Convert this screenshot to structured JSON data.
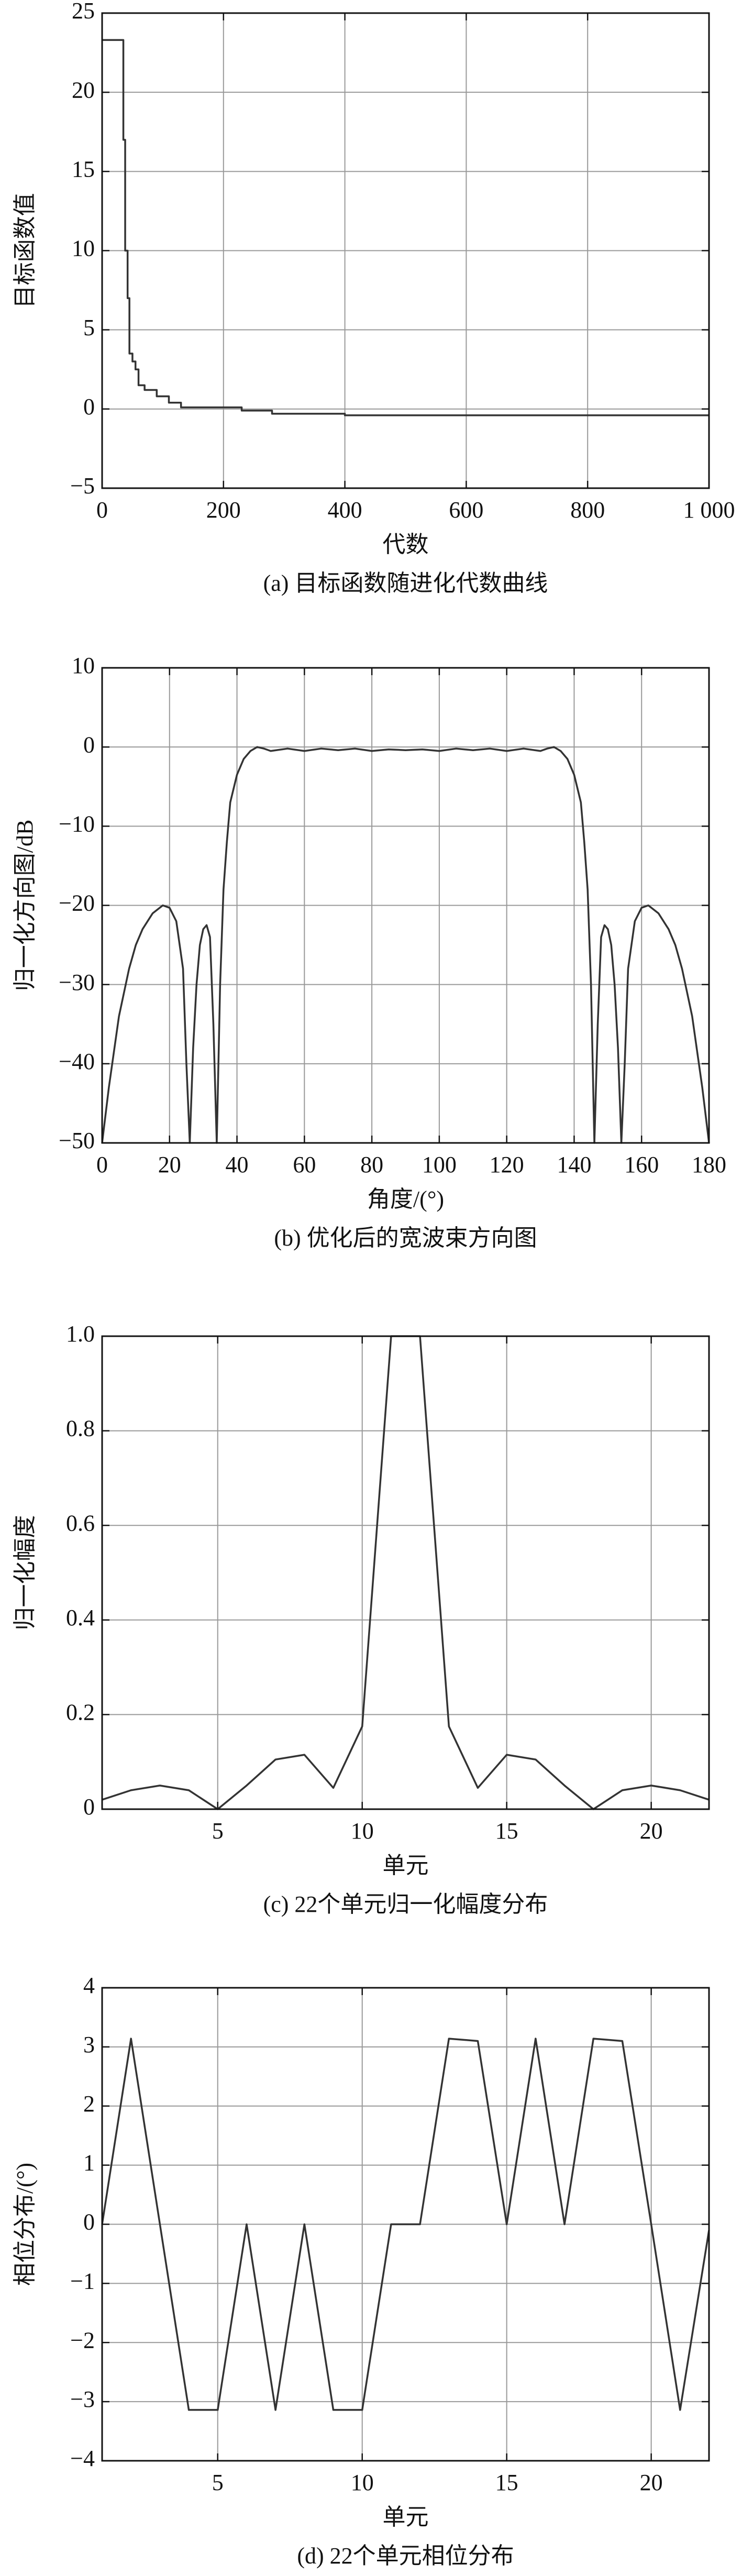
{
  "chart_data": [
    {
      "type": "line",
      "caption": "(a) 目标函数随进化代数曲线",
      "x_label": "代数",
      "y_label": "目标函数值",
      "color": "#333333",
      "grid": true,
      "xlim": [
        0,
        1000
      ],
      "xticks": [
        0,
        200,
        400,
        600,
        800,
        {
          "value": 1000,
          "label": "1 000"
        }
      ],
      "ylim": [
        -5,
        25
      ],
      "yticks": [
        {
          "value": -5,
          "label": "−5"
        },
        0,
        5,
        10,
        15,
        20,
        25
      ],
      "x": [
        0,
        35,
        35,
        38,
        38,
        42,
        42,
        45,
        45,
        50,
        50,
        55,
        55,
        60,
        60,
        70,
        70,
        90,
        90,
        110,
        110,
        130,
        130,
        230,
        230,
        280,
        280,
        400,
        400,
        1000
      ],
      "values": [
        23.3,
        23.3,
        17,
        17,
        10,
        10,
        7,
        7,
        3.5,
        3.5,
        3,
        3,
        2.5,
        2.5,
        1.5,
        1.5,
        1.2,
        1.2,
        0.8,
        0.8,
        0.4,
        0.4,
        0.1,
        0.1,
        -0.1,
        -0.1,
        -0.3,
        -0.3,
        -0.4,
        -0.4
      ]
    },
    {
      "type": "line",
      "caption": "(b) 优化后的宽波束方向图",
      "x_label": "角度/(°)",
      "y_label": "归一化方向图/dB",
      "color": "#333333",
      "grid": true,
      "xlim": [
        0,
        180
      ],
      "xticks": [
        0,
        20,
        40,
        60,
        80,
        100,
        120,
        140,
        160,
        180
      ],
      "ylim": [
        -50,
        10
      ],
      "yticks": [
        {
          "value": -50,
          "label": "−50"
        },
        {
          "value": -40,
          "label": "−40"
        },
        {
          "value": -30,
          "label": "−30"
        },
        {
          "value": -20,
          "label": "−20"
        },
        {
          "value": -10,
          "label": "−10"
        },
        0,
        10
      ],
      "x": [
        0,
        2,
        5,
        8,
        10,
        12,
        15,
        18,
        20,
        22,
        24,
        25,
        26,
        27,
        28,
        29,
        30,
        31,
        32,
        33,
        34,
        35,
        36,
        37,
        38,
        40,
        42,
        44,
        46,
        48,
        50,
        55,
        60,
        65,
        70,
        75,
        80,
        85,
        90,
        95,
        100,
        105,
        110,
        115,
        120,
        125,
        130,
        132,
        134,
        136,
        138,
        140,
        142,
        143,
        144,
        145,
        146,
        147,
        148,
        149,
        150,
        151,
        152,
        153,
        154,
        155,
        156,
        158,
        160,
        162,
        165,
        168,
        170,
        172,
        175,
        178,
        180
      ],
      "values": [
        -50,
        -43,
        -34,
        -28,
        -25,
        -23,
        -21,
        -20,
        -20.3,
        -22,
        -28,
        -40,
        -50,
        -38,
        -30,
        -25,
        -23,
        -22.5,
        -24,
        -35,
        -50,
        -30,
        -18,
        -12,
        -7,
        -3.5,
        -1.5,
        -0.5,
        0,
        -0.2,
        -0.5,
        -0.2,
        -0.5,
        -0.2,
        -0.4,
        -0.2,
        -0.5,
        -0.3,
        -0.4,
        -0.3,
        -0.5,
        -0.2,
        -0.4,
        -0.2,
        -0.5,
        -0.2,
        -0.5,
        -0.2,
        0,
        -0.5,
        -1.5,
        -3.5,
        -7,
        -12,
        -18,
        -30,
        -50,
        -35,
        -24,
        -22.5,
        -23,
        -25,
        -30,
        -38,
        -50,
        -40,
        -28,
        -22,
        -20.3,
        -20,
        -21,
        -23,
        -25,
        -28,
        -34,
        -43,
        -50
      ]
    },
    {
      "type": "line",
      "caption": "(c) 22个单元归一化幅度分布",
      "x_label": "单元",
      "y_label": "归一化幅度",
      "color": "#333333",
      "grid": true,
      "xlim": [
        1,
        22
      ],
      "xticks": [
        5,
        10,
        15,
        20
      ],
      "ylim": [
        0,
        1
      ],
      "yticks": [
        0,
        0.2,
        0.4,
        0.6,
        0.8,
        {
          "value": 1,
          "label": "1.0"
        }
      ],
      "x": [
        1,
        2,
        3,
        4,
        5,
        6,
        7,
        8,
        9,
        10,
        11,
        12,
        13,
        14,
        15,
        16,
        17,
        18,
        19,
        20,
        21,
        22
      ],
      "values": [
        0.02,
        0.04,
        0.05,
        0.04,
        0.0,
        0.05,
        0.105,
        0.115,
        0.045,
        0.175,
        1.0,
        1.0,
        0.175,
        0.045,
        0.115,
        0.105,
        0.05,
        0.0,
        0.04,
        0.05,
        0.04,
        0.02
      ]
    },
    {
      "type": "line",
      "caption": "(d) 22个单元相位分布",
      "x_label": "单元",
      "y_label": "相位分布/(°)",
      "color": "#333333",
      "grid": true,
      "xlim": [
        1,
        22
      ],
      "xticks": [
        5,
        10,
        15,
        20
      ],
      "ylim": [
        -4,
        4
      ],
      "yticks": [
        {
          "value": -4,
          "label": "−4"
        },
        {
          "value": -3,
          "label": "−3"
        },
        {
          "value": -2,
          "label": "−2"
        },
        {
          "value": -1,
          "label": "−1"
        },
        0,
        1,
        2,
        3,
        4
      ],
      "x": [
        1,
        2,
        3,
        4,
        5,
        6,
        7,
        8,
        9,
        10,
        11,
        12,
        13,
        14,
        15,
        16,
        17,
        18,
        19,
        20,
        21,
        22
      ],
      "values": [
        0,
        3.14,
        0,
        -3.14,
        -3.14,
        0,
        -3.14,
        0,
        -3.14,
        -3.14,
        0,
        0,
        3.14,
        3.1,
        0,
        3.14,
        0,
        3.14,
        3.1,
        0,
        -3.14,
        -0.1
      ]
    }
  ]
}
